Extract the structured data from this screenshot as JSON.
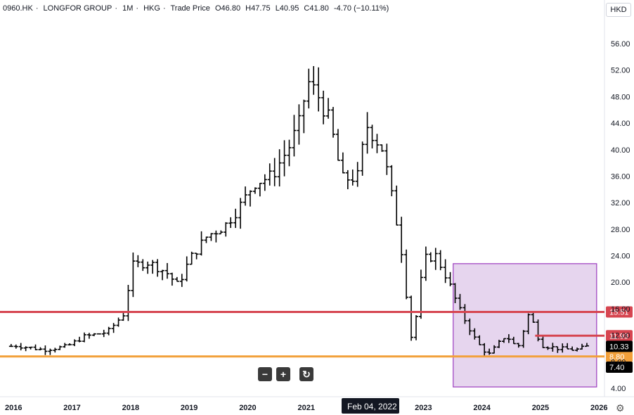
{
  "header": {
    "symbol": "0960.HK",
    "name": "LONGFOR GROUP",
    "interval": "1M",
    "exchange": "HKG",
    "price_type": "Trade Price",
    "open": "O46.80",
    "high": "H47.75",
    "low": "L40.95",
    "close": "C41.80",
    "change": "-4.70 (−10.11%)",
    "separator": "·"
  },
  "currency_button": "HKD",
  "controls": {
    "zoom_out": "−",
    "zoom_in": "+",
    "reset": "↻"
  },
  "settings_icon": "gear-icon",
  "crosshair_label": "Feb 04, 2022",
  "colors": {
    "bars": "#000000",
    "red_line": "#d64550",
    "orange_line": "#f2a03a",
    "box_fill": "#e6d5ee",
    "box_border": "#9b3bbf"
  },
  "chart_data": {
    "type": "ohlc",
    "title": "",
    "xlabel": "",
    "ylabel": "",
    "ylim": [
      4,
      56
    ],
    "xlim": [
      2015.9,
      2026.05
    ],
    "y_ticks": [
      "4.00",
      "8.00",
      "12.00",
      "16.00",
      "20.00",
      "24.00",
      "28.00",
      "32.00",
      "36.00",
      "40.00",
      "44.00",
      "48.00",
      "52.00",
      "56.00"
    ],
    "x_ticks": [
      "2016",
      "2017",
      "2018",
      "2019",
      "2020",
      "2021",
      "2023",
      "2024",
      "2025",
      "2026"
    ],
    "grid": false,
    "horizontal_levels": [
      {
        "label": "15.51",
        "value": 15.51,
        "color": "#d64550"
      },
      {
        "label": "11.93",
        "value": 11.93,
        "color": "#d64550",
        "start": 2024.9
      },
      {
        "label": "8.80",
        "value": 8.8,
        "color": "#f2a03a"
      }
    ],
    "price_labels": [
      {
        "label": "10.33",
        "value": 10.33
      },
      {
        "label": "7.40",
        "value": 7.4
      }
    ],
    "box": {
      "x0": 2023.5,
      "x1": 2025.95,
      "y0": 4.2,
      "y1": 22.8
    },
    "close_path": [
      [
        2016.0,
        10.5
      ],
      [
        2016.5,
        9.8
      ],
      [
        2016.9,
        10.3
      ],
      [
        2017.2,
        11.8
      ],
      [
        2017.6,
        12.5
      ],
      [
        2017.9,
        15.5
      ],
      [
        2018.0,
        22.5
      ],
      [
        2018.3,
        23.0
      ],
      [
        2018.6,
        21.5
      ],
      [
        2018.8,
        19.5
      ],
      [
        2019.0,
        23.5
      ],
      [
        2019.3,
        27.0
      ],
      [
        2019.6,
        28.5
      ],
      [
        2019.9,
        32.0
      ],
      [
        2020.1,
        35.0
      ],
      [
        2020.4,
        36.0
      ],
      [
        2020.7,
        40.5
      ],
      [
        2020.9,
        44.5
      ],
      [
        2021.0,
        50.5
      ],
      [
        2021.2,
        48.0
      ],
      [
        2021.4,
        44.0
      ],
      [
        2021.6,
        35.5
      ],
      [
        2021.9,
        36.0
      ],
      [
        2022.0,
        44.0
      ],
      [
        2022.3,
        40.0
      ],
      [
        2022.6,
        26.0
      ],
      [
        2022.8,
        10.5
      ],
      [
        2023.0,
        23.5
      ],
      [
        2023.2,
        24.0
      ],
      [
        2023.4,
        20.5
      ],
      [
        2023.6,
        16.0
      ],
      [
        2023.9,
        11.0
      ],
      [
        2024.1,
        9.0
      ],
      [
        2024.4,
        12.0
      ],
      [
        2024.6,
        10.0
      ],
      [
        2024.8,
        15.5
      ],
      [
        2025.0,
        10.5
      ],
      [
        2025.3,
        10.0
      ],
      [
        2025.6,
        9.8
      ],
      [
        2025.8,
        10.33
      ]
    ]
  }
}
